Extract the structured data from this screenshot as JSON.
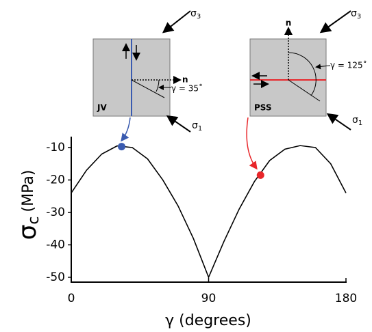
{
  "chart_data": {
    "type": "line",
    "x_label": "γ (degrees)",
    "y_label": {
      "symbol": "σ",
      "subscript": "c",
      "unit": "(MPa)"
    },
    "x": [
      0,
      10,
      20,
      30,
      40,
      50,
      60,
      70,
      80,
      90,
      100,
      110,
      120,
      130,
      140,
      150,
      160,
      170,
      180
    ],
    "values": [
      -24,
      -17,
      -12,
      -9.5,
      -10,
      -13.5,
      -20,
      -28,
      -38,
      -50,
      -39,
      -29,
      -20.5,
      -14,
      -10.5,
      -9.4,
      -10,
      -15,
      -24
    ],
    "color": "#000000",
    "points": [
      {
        "x": 33,
        "y": -9.7,
        "color": "#3a5bb0"
      },
      {
        "x": 124,
        "y": -18.5,
        "color": "#e8262a"
      }
    ],
    "xlim": [
      0,
      180
    ],
    "xticks": [
      0,
      90,
      180
    ],
    "ylim": [
      -51.5,
      -7
    ],
    "yticks": [
      -50,
      -40,
      -30,
      -20,
      -10
    ]
  },
  "diagrams": [
    {
      "label": "JV",
      "normal": "n",
      "angle_label": "γ = 35˚",
      "sigma3": {
        "symbol": "σ",
        "subscript": "3"
      },
      "sigma1": {
        "symbol": "σ",
        "subscript": "1"
      }
    },
    {
      "label": "PSS",
      "normal": "n",
      "angle_label": "γ = 125˚",
      "sigma3": {
        "symbol": "σ",
        "subscript": "3"
      },
      "sigma1": {
        "symbol": "σ",
        "subscript": "1"
      }
    }
  ]
}
